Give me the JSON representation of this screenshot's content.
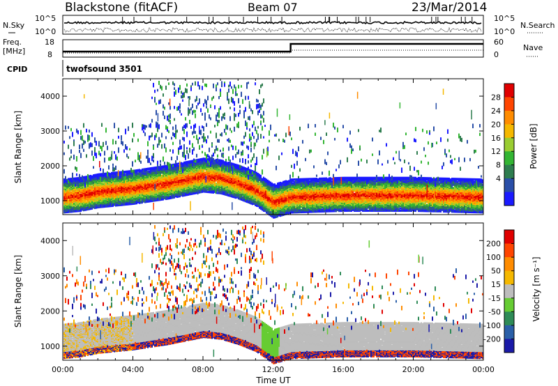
{
  "header": {
    "station": "Blackstone (fitACF)",
    "beam": "Beam 07",
    "date": "23/Mar/2014"
  },
  "top_panels": {
    "nsky_label": "N.Sky",
    "nsearch_label": "N.Search",
    "ticks_log": [
      "10^5",
      "10^0"
    ],
    "freq_label_top": "Freq.",
    "freq_label_bottom": "[MHz]",
    "freq_ticks": [
      "18",
      "8"
    ],
    "nave_label": "Nave",
    "nave_ticks": [
      "60",
      "0"
    ],
    "cpid_label": "CPID",
    "cpid_value": "twofsound 3501"
  },
  "time_axis": {
    "label": "Time UT",
    "ticks": [
      "00:00",
      "04:00",
      "08:00",
      "12:00",
      "16:00",
      "20:00",
      "00:00"
    ]
  },
  "power_panel": {
    "ylabel": "Slant Range [km]",
    "yticks": [
      "4000",
      "3000",
      "2000",
      "1000"
    ],
    "colorbar_label": "Power [dB]",
    "colorbar_ticks": [
      "28",
      "24",
      "20",
      "16",
      "12",
      "8",
      "4"
    ],
    "colors": [
      "#1a1aff",
      "#2a4fa8",
      "#2e7d4f",
      "#33b533",
      "#9acd32",
      "#f5b800",
      "#ff8c00",
      "#ff4500",
      "#e00000"
    ]
  },
  "velocity_panel": {
    "ylabel": "Slant Range [km]",
    "yticks": [
      "4000",
      "3000",
      "2000",
      "1000"
    ],
    "colorbar_label": "Velocity [m s⁻¹]",
    "colorbar_ticks": [
      "200",
      "100",
      "50",
      "15",
      "-15",
      "-50",
      "-100",
      "-200"
    ],
    "colors": [
      "#1a1aa8",
      "#2a5fa8",
      "#2e8b57",
      "#66cc33",
      "#bdbdbd",
      "#f5b800",
      "#ff8c00",
      "#ff4500",
      "#e00000"
    ]
  },
  "chart_data": [
    {
      "type": "heatmap",
      "title": "Power",
      "xlabel": "Time UT",
      "ylabel": "Slant Range [km]",
      "xlim": [
        0,
        24
      ],
      "ylim": [
        600,
        4500
      ],
      "colorbar": "Power [dB]",
      "clim": [
        0,
        32
      ],
      "ground_scatter_band_km": [
        [
          0,
          1100
        ],
        [
          1,
          1150
        ],
        [
          2,
          1250
        ],
        [
          4,
          1350
        ],
        [
          6,
          1500
        ],
        [
          8,
          1700
        ],
        [
          9,
          1650
        ],
        [
          10,
          1500
        ],
        [
          11,
          1300
        ],
        [
          12,
          950
        ],
        [
          13,
          1100
        ],
        [
          16,
          1150
        ],
        [
          20,
          1150
        ],
        [
          24,
          1100
        ]
      ]
    },
    {
      "type": "heatmap",
      "title": "Velocity",
      "xlabel": "Time UT",
      "ylabel": "Slant Range [km]",
      "xlim": [
        0,
        24
      ],
      "ylim": [
        600,
        4500
      ],
      "colorbar": "Velocity [m s-1]",
      "clim": [
        -200,
        200
      ]
    }
  ]
}
